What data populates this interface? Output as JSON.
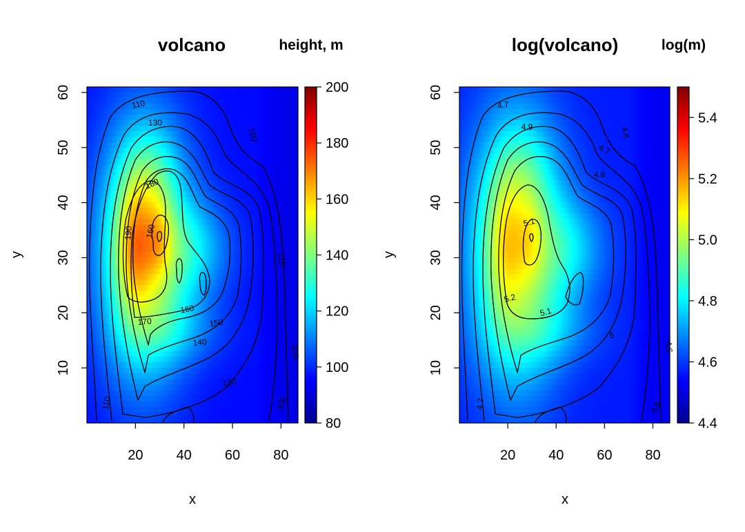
{
  "chart_data": [
    {
      "type": "heatmap",
      "title": "volcano",
      "colorbar_title": "height, m",
      "xlabel": "x",
      "ylabel": "y",
      "xlim": [
        0,
        87
      ],
      "ylim": [
        0,
        61
      ],
      "x_ticks": [
        "20",
        "40",
        "60",
        "80"
      ],
      "y_ticks": [
        "10",
        "20",
        "30",
        "40",
        "50",
        "60"
      ],
      "colorbar_range": [
        80,
        200
      ],
      "colorbar_ticks": [
        "80",
        "100",
        "120",
        "140",
        "160",
        "180",
        "200"
      ],
      "contour_labels": [
        "110",
        "130",
        "180",
        "190",
        "160",
        "160",
        "170",
        "150",
        "140",
        "120",
        "100",
        "110",
        "100",
        "100",
        "110"
      ],
      "peak": {
        "x": 30,
        "y": 34,
        "value": 195
      },
      "secondary_peak": {
        "x": 18,
        "y": 29,
        "value": 188
      }
    },
    {
      "type": "heatmap",
      "title": "log(volcano)",
      "colorbar_title": "log(m)",
      "xlabel": "x",
      "ylabel": "y",
      "xlim": [
        0,
        87
      ],
      "ylim": [
        0,
        61
      ],
      "x_ticks": [
        "20",
        "40",
        "60",
        "80"
      ],
      "y_ticks": [
        "10",
        "20",
        "30",
        "40",
        "50",
        "60"
      ],
      "colorbar_range": [
        4.4,
        5.5
      ],
      "colorbar_ticks": [
        "4.4",
        "4.6",
        "4.8",
        "5.0",
        "5.2",
        "5.4"
      ],
      "contour_labels": [
        "4.7",
        "4.9",
        "4.6",
        "4.7",
        "4.8",
        "5.1",
        "5.2",
        "5.1",
        "5",
        "4.6",
        "4.7",
        "4.6"
      ],
      "peak": {
        "x": 30,
        "y": 34,
        "value": 5.27
      }
    }
  ]
}
